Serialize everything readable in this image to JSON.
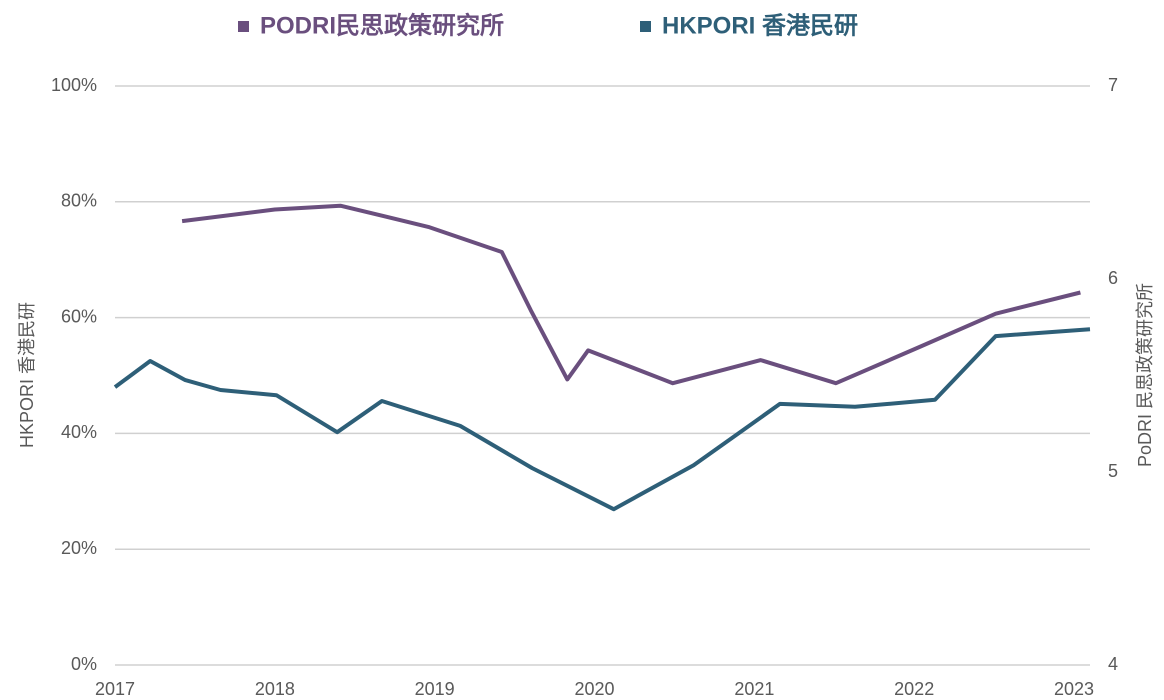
{
  "chart_data": {
    "type": "line",
    "y_label": "HKPORI 香港民研",
    "y2_label": "PoDRI 民思政策研究所",
    "xlim": [
      2017,
      2023.1
    ],
    "xticks": [
      2017,
      2018,
      2019,
      2020,
      2021,
      2022,
      2023
    ],
    "ylim": [
      0,
      100
    ],
    "yticks": [
      {
        "value": 0,
        "label": "0%"
      },
      {
        "value": 20,
        "label": "20%"
      },
      {
        "value": 40,
        "label": "40%"
      },
      {
        "value": 60,
        "label": "60%"
      },
      {
        "value": 80,
        "label": "80%"
      },
      {
        "value": 100,
        "label": "100%"
      }
    ],
    "y2lim": [
      4,
      7
    ],
    "y2ticks": [
      4,
      5,
      6,
      7
    ],
    "grid": true,
    "legend": "top",
    "series": [
      {
        "name": "PODRI民思政策研究所",
        "color": "#6a4f7e",
        "axis": "y2",
        "x": [
          2017.42,
          2018.0,
          2018.41,
          2018.96,
          2019.42,
          2019.6,
          2019.83,
          2019.96,
          2020.49,
          2021.04,
          2021.51,
          2022.04,
          2022.51,
          2023.04
        ],
        "values": [
          6.3,
          6.36,
          6.38,
          6.27,
          6.14,
          5.84,
          5.48,
          5.63,
          5.46,
          5.58,
          5.46,
          5.65,
          5.82,
          5.93
        ]
      },
      {
        "name": "HKPORI 香港民研",
        "color": "#2e5f78",
        "x": [
          2017.0,
          2017.22,
          2017.44,
          2017.66,
          2018.01,
          2018.39,
          2018.67,
          2019.16,
          2019.61,
          2020.12,
          2020.62,
          2021.16,
          2021.63,
          2022.13,
          2022.51,
          2023.1
        ],
        "values": [
          48.0,
          52.5,
          49.2,
          47.5,
          46.6,
          40.2,
          45.6,
          41.3,
          34.0,
          26.9,
          34.5,
          45.1,
          44.6,
          45.8,
          56.8,
          58.0
        ]
      }
    ]
  }
}
